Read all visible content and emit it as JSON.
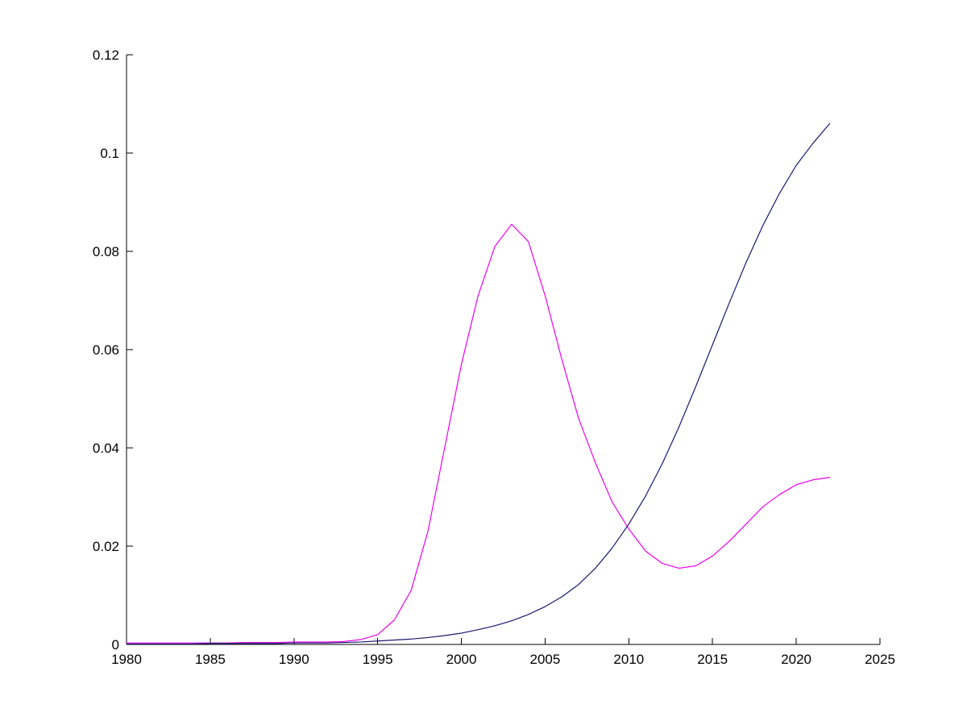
{
  "chart_data": {
    "type": "line",
    "title": "",
    "xlabel": "",
    "ylabel": "",
    "xlim": [
      1980,
      2025
    ],
    "ylim": [
      0,
      0.12
    ],
    "grid": false,
    "legend": null,
    "box": false,
    "axis_color": "#000000",
    "background_color": "#ffffff",
    "xticks": [
      1980,
      1985,
      1990,
      1995,
      2000,
      2005,
      2010,
      2015,
      2020,
      2025
    ],
    "xtick_labels": [
      "1980",
      "1985",
      "1990",
      "1995",
      "2000",
      "2005",
      "2010",
      "2015",
      "2020",
      "2025"
    ],
    "yticks": [
      0,
      0.02,
      0.04,
      0.06,
      0.08,
      0.1,
      0.12
    ],
    "ytick_labels": [
      "0",
      "0.02",
      "0.04",
      "0.06",
      "0.08",
      "0.1",
      "0.12"
    ],
    "x": [
      1980,
      1981,
      1982,
      1983,
      1984,
      1985,
      1986,
      1987,
      1988,
      1989,
      1990,
      1991,
      1992,
      1993,
      1994,
      1995,
      1996,
      1997,
      1998,
      1999,
      2000,
      2001,
      2002,
      2003,
      2004,
      2005,
      2006,
      2007,
      2008,
      2009,
      2010,
      2011,
      2012,
      2013,
      2014,
      2015,
      2016,
      2017,
      2018,
      2019,
      2020,
      2021,
      2022
    ],
    "series": [
      {
        "name": "magenta-series",
        "color": "#ee00ee",
        "values": [
          0.0003,
          0.0003,
          0.0003,
          0.0003,
          0.0003,
          0.0003,
          0.0003,
          0.0004,
          0.0004,
          0.0004,
          0.0005,
          0.0005,
          0.0005,
          0.0006,
          0.001,
          0.002,
          0.005,
          0.011,
          0.023,
          0.04,
          0.057,
          0.071,
          0.081,
          0.0855,
          0.082,
          0.071,
          0.058,
          0.046,
          0.037,
          0.029,
          0.0235,
          0.019,
          0.0165,
          0.0155,
          0.016,
          0.018,
          0.021,
          0.0245,
          0.028,
          0.0305,
          0.0325,
          0.0335,
          0.034
        ]
      },
      {
        "name": "dark-blue-series",
        "color": "#191970",
        "values": [
          0.0001,
          0.0001,
          0.0001,
          0.0001,
          0.0001,
          0.0002,
          0.0002,
          0.0002,
          0.0002,
          0.0002,
          0.0003,
          0.0003,
          0.0003,
          0.0004,
          0.0005,
          0.0007,
          0.0009,
          0.0011,
          0.0014,
          0.0018,
          0.0023,
          0.003,
          0.0038,
          0.0048,
          0.0061,
          0.0077,
          0.0097,
          0.0122,
          0.0155,
          0.0196,
          0.0245,
          0.0302,
          0.0368,
          0.0443,
          0.0525,
          0.061,
          0.0695,
          0.0777,
          0.0852,
          0.0918,
          0.0975,
          0.102,
          0.106
        ]
      }
    ]
  }
}
